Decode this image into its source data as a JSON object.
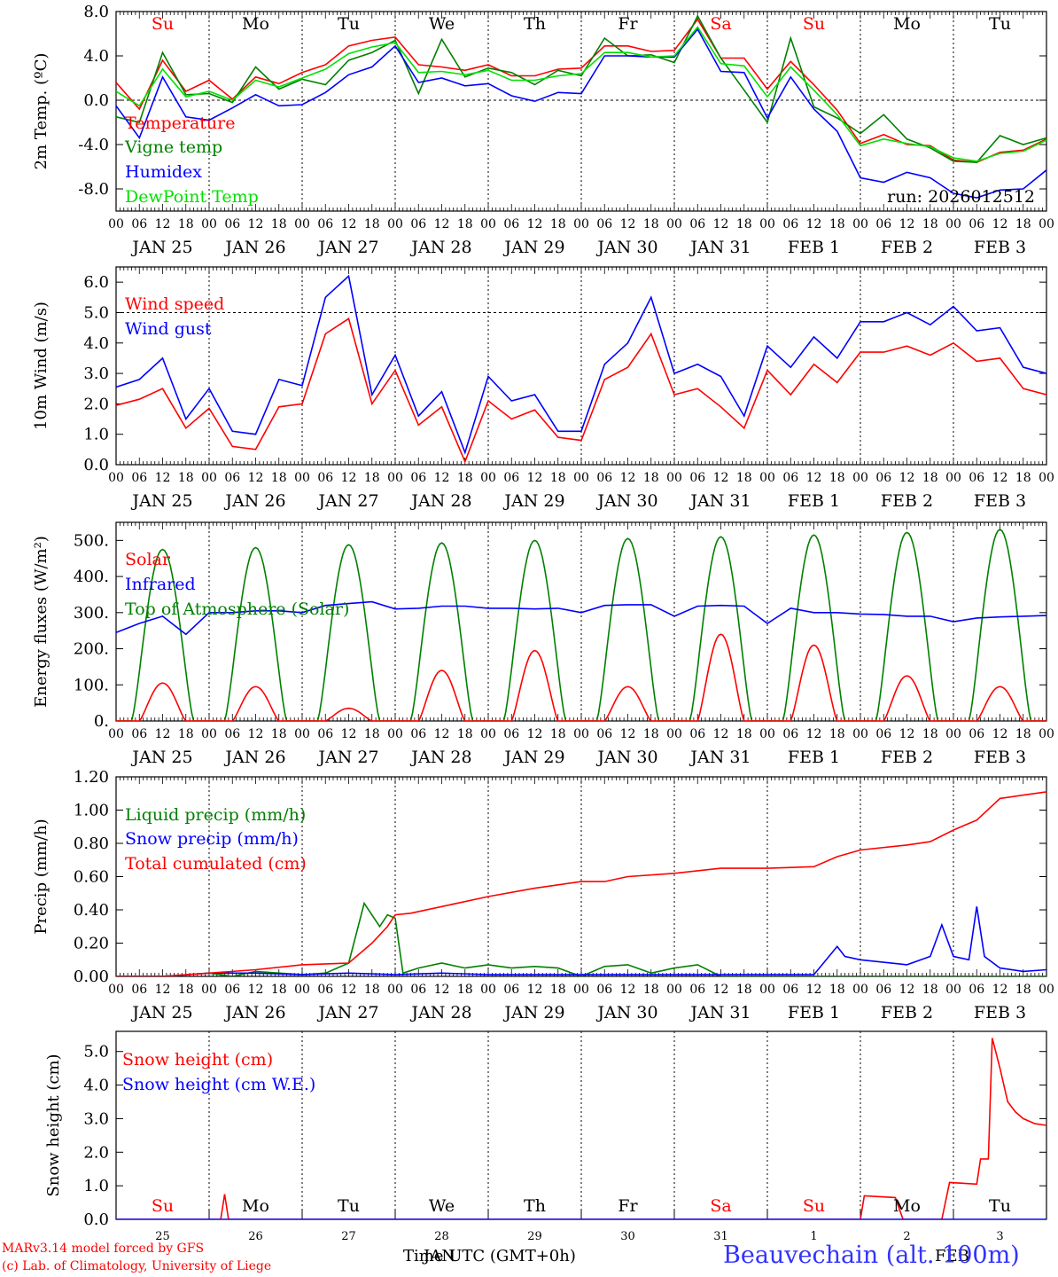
{
  "run_label": "run: 2026012512",
  "footer": {
    "model": "MARv3.14 model forced by GFS",
    "copyright": "(c) Lab. of Climatology, University of Liege",
    "time_axis": "Time UTC (GMT+0h)",
    "month_jan": "JAN",
    "month_feb": "FEB",
    "station": "Beauvechain (alt. 100m)"
  },
  "colors": {
    "red": "#ff0000",
    "green": "#008000",
    "blue": "#0000ff",
    "lime": "#00e000",
    "axis": "#000000"
  },
  "hour_ticks": [
    "00",
    "06",
    "12",
    "18"
  ],
  "date_labels": [
    "JAN 25",
    "JAN 26",
    "JAN 27",
    "JAN 28",
    "JAN 29",
    "JAN 30",
    "JAN 31",
    "FEB  1",
    "FEB  2",
    "FEB  3"
  ],
  "day_names": [
    "Su",
    "Mo",
    "Tu",
    "We",
    "Th",
    "Fr",
    "Sa",
    "Su",
    "Mo",
    "Tu"
  ],
  "day_numbers": [
    "25",
    "26",
    "27",
    "28",
    "29",
    "30",
    "31",
    "1",
    "2",
    "3"
  ],
  "chart_data": [
    {
      "type": "line",
      "id": "temp",
      "ylabel": "2m Temp. (ºC)",
      "ylim": [
        -10,
        8
      ],
      "yticks": [
        -8,
        -4,
        0,
        4,
        8
      ],
      "ytick_labels": [
        "-8.0",
        "-4.0",
        "0.0",
        "4.0",
        "8.0"
      ],
      "zero_line": 0,
      "x_hours": [
        0,
        6,
        12,
        18,
        24,
        30,
        36,
        42,
        48,
        54,
        60,
        66,
        72,
        78,
        84,
        90,
        96,
        102,
        108,
        114,
        120,
        126,
        132,
        138,
        144,
        150,
        156,
        162,
        168,
        174,
        180,
        186,
        192,
        198,
        204,
        210,
        216,
        222,
        228,
        234,
        240
      ],
      "series": [
        {
          "name": "Temperature",
          "color": "red",
          "values": [
            1.6,
            -0.8,
            3.6,
            0.8,
            1.8,
            0.1,
            2.1,
            1.5,
            2.5,
            3.2,
            4.9,
            5.4,
            5.7,
            3.2,
            3.0,
            2.7,
            3.2,
            2.2,
            2.2,
            2.8,
            2.9,
            4.9,
            4.9,
            4.4,
            4.5,
            7.3,
            3.8,
            3.8,
            1.0,
            3.5,
            1.4,
            -0.9,
            -3.9,
            -3.1,
            -4.0,
            -4.1,
            -5.4,
            -5.6,
            -4.7,
            -4.5,
            -3.5
          ]
        },
        {
          "name": "Vigne temp",
          "color": "green",
          "values": [
            -1.5,
            -2.0,
            4.3,
            0.5,
            0.6,
            -0.2,
            3.0,
            1.0,
            1.9,
            1.4,
            3.6,
            4.3,
            5.4,
            0.6,
            5.5,
            2.1,
            2.9,
            2.5,
            1.4,
            2.7,
            2.2,
            5.6,
            4.0,
            4.1,
            3.4,
            7.6,
            3.8,
            0.9,
            -2.0,
            5.6,
            -0.6,
            -1.6,
            -3.0,
            -1.3,
            -3.5,
            -4.3,
            -5.5,
            -5.6,
            -3.2,
            -4.0,
            -3.4
          ]
        },
        {
          "name": "Humidex",
          "color": "blue",
          "values": [
            -0.5,
            -3.4,
            2.1,
            -1.5,
            -1.8,
            -0.7,
            0.5,
            -0.5,
            -0.4,
            0.7,
            2.3,
            3.0,
            4.9,
            1.6,
            2.0,
            1.3,
            1.5,
            0.4,
            -0.1,
            0.7,
            0.6,
            4.0,
            4.0,
            3.9,
            3.9,
            6.4,
            2.6,
            2.5,
            -1.6,
            2.1,
            -0.8,
            -2.8,
            -7.0,
            -7.4,
            -6.5,
            -7.0,
            -8.4,
            -8.8,
            -8.1,
            -8.0,
            -6.3
          ]
        },
        {
          "name": "DewPoint Temp",
          "color": "lime",
          "values": [
            0.8,
            -0.5,
            2.8,
            0.3,
            0.8,
            0.0,
            1.8,
            1.2,
            2.0,
            2.8,
            4.2,
            4.8,
            5.2,
            2.5,
            2.6,
            2.3,
            2.7,
            1.8,
            1.8,
            2.2,
            2.4,
            4.3,
            4.3,
            3.9,
            4.0,
            6.6,
            3.3,
            3.1,
            0.3,
            3.0,
            0.9,
            -1.3,
            -4.1,
            -3.5,
            -3.9,
            -4.2,
            -5.2,
            -5.5,
            -4.8,
            -4.6,
            -3.6
          ]
        }
      ]
    },
    {
      "type": "line",
      "id": "wind",
      "ylabel": "10m Wind (m/s)",
      "ylim": [
        0,
        6.5
      ],
      "yticks": [
        0,
        1,
        2,
        3,
        4,
        5,
        6
      ],
      "ytick_labels": [
        "0.0",
        "1.0",
        "2.0",
        "3.0",
        "4.0",
        "5.0",
        "6.0"
      ],
      "ref_line": 5,
      "x_hours": [
        0,
        6,
        12,
        18,
        24,
        30,
        36,
        42,
        48,
        54,
        60,
        66,
        72,
        78,
        84,
        90,
        96,
        102,
        108,
        114,
        120,
        126,
        132,
        138,
        144,
        150,
        156,
        162,
        168,
        174,
        180,
        186,
        192,
        198,
        204,
        210,
        216,
        222,
        228,
        234,
        240
      ],
      "series": [
        {
          "name": "Wind speed",
          "color": "red",
          "values": [
            1.95,
            2.15,
            2.5,
            1.2,
            1.85,
            0.6,
            0.5,
            1.9,
            2.0,
            4.3,
            4.8,
            2.0,
            3.1,
            1.3,
            1.9,
            0.1,
            2.1,
            1.5,
            1.8,
            0.9,
            0.8,
            2.8,
            3.2,
            4.3,
            2.3,
            2.5,
            1.9,
            1.2,
            3.1,
            2.3,
            3.3,
            2.7,
            3.7,
            3.7,
            3.9,
            3.6,
            4.0,
            3.4,
            3.5,
            2.5,
            2.3
          ]
        },
        {
          "name": "Wind gust",
          "color": "blue",
          "values": [
            2.55,
            2.8,
            3.5,
            1.5,
            2.5,
            1.1,
            1.0,
            2.8,
            2.6,
            5.5,
            6.2,
            2.3,
            3.6,
            1.6,
            2.4,
            0.4,
            2.9,
            2.1,
            2.3,
            1.1,
            1.1,
            3.3,
            4.0,
            5.5,
            3.0,
            3.3,
            2.9,
            1.6,
            3.9,
            3.2,
            4.2,
            3.5,
            4.7,
            4.7,
            5.0,
            4.6,
            5.2,
            4.4,
            4.5,
            3.2,
            3.0
          ]
        }
      ]
    },
    {
      "type": "line",
      "id": "energy",
      "ylabel": "Energy fluxes (W/m²)",
      "ylim": [
        0,
        550
      ],
      "yticks": [
        0,
        100,
        200,
        300,
        400,
        500
      ],
      "ytick_labels": [
        "0.",
        "100.",
        "200.",
        "300.",
        "400.",
        "500."
      ],
      "solar_peaks": [
        105,
        95,
        35,
        140,
        195,
        95,
        240,
        210,
        125,
        95
      ],
      "toa_peaks": [
        475,
        480,
        488,
        493,
        500,
        505,
        510,
        515,
        522,
        530
      ],
      "series": [
        {
          "name": "Solar",
          "color": "red"
        },
        {
          "name": "Infrared",
          "color": "blue",
          "x_hours": [
            0,
            6,
            12,
            18,
            24,
            30,
            36,
            42,
            48,
            54,
            60,
            66,
            72,
            78,
            84,
            90,
            96,
            102,
            108,
            114,
            120,
            126,
            132,
            138,
            144,
            150,
            156,
            162,
            168,
            174,
            180,
            186,
            192,
            198,
            204,
            210,
            216,
            222,
            228,
            234,
            240
          ],
          "values": [
            245,
            270,
            290,
            240,
            300,
            300,
            305,
            305,
            300,
            320,
            325,
            330,
            310,
            312,
            318,
            318,
            312,
            312,
            310,
            312,
            300,
            320,
            322,
            322,
            290,
            318,
            320,
            318,
            270,
            312,
            300,
            300,
            296,
            295,
            290,
            290,
            275,
            285,
            288,
            290,
            292
          ]
        },
        {
          "name": "Top of Atmosphere (Solar)",
          "color": "green"
        }
      ]
    },
    {
      "type": "line",
      "id": "precip",
      "ylabel": "Precip (mm/h)",
      "ylim": [
        0,
        1.2
      ],
      "yticks": [
        0,
        0.2,
        0.4,
        0.6,
        0.8,
        1.0,
        1.2
      ],
      "ytick_labels": [
        "0.00",
        "0.20",
        "0.40",
        "0.60",
        "0.80",
        "1.00",
        "1.20"
      ],
      "series": [
        {
          "name": "Liquid precip (mm/h)",
          "color": "green",
          "x_hours": [
            0,
            12,
            24,
            30,
            36,
            48,
            54,
            60,
            64,
            68,
            70,
            72,
            74,
            78,
            84,
            90,
            96,
            102,
            108,
            114,
            120,
            126,
            132,
            138,
            144,
            150,
            156,
            162,
            168,
            174,
            180,
            186,
            192,
            198,
            204,
            210,
            216,
            222,
            228,
            234,
            240
          ],
          "values": [
            0,
            0,
            0.02,
            0,
            0.03,
            0.01,
            0.02,
            0.08,
            0.44,
            0.3,
            0.37,
            0.35,
            0.02,
            0.05,
            0.08,
            0.05,
            0.07,
            0.05,
            0.06,
            0.05,
            0.0,
            0.06,
            0.07,
            0.02,
            0.05,
            0.07,
            0,
            0,
            0,
            0,
            0,
            0,
            0,
            0,
            0,
            0,
            0,
            0,
            0,
            0,
            0
          ]
        },
        {
          "name": "Snow precip (mm/h)",
          "color": "blue",
          "x_hours": [
            0,
            12,
            24,
            36,
            48,
            60,
            72,
            84,
            96,
            108,
            120,
            132,
            144,
            156,
            168,
            180,
            186,
            188,
            192,
            204,
            210,
            213,
            216,
            220,
            222,
            224,
            228,
            234,
            240
          ],
          "values": [
            0,
            0,
            0.02,
            0.02,
            0.01,
            0.02,
            0.01,
            0.02,
            0.01,
            0.01,
            0.01,
            0.01,
            0.01,
            0.01,
            0.01,
            0.01,
            0.18,
            0.12,
            0.1,
            0.07,
            0.12,
            0.31,
            0.12,
            0.1,
            0.42,
            0.12,
            0.05,
            0.03,
            0.04
          ]
        },
        {
          "name": "Total cumulated (cm)",
          "color": "red",
          "x_hours": [
            0,
            12,
            24,
            36,
            48,
            60,
            66,
            70,
            72,
            76,
            84,
            96,
            108,
            120,
            126,
            132,
            144,
            156,
            168,
            180,
            186,
            192,
            204,
            210,
            216,
            219,
            222,
            228,
            234,
            240
          ],
          "values": [
            0,
            0,
            0.02,
            0.04,
            0.07,
            0.08,
            0.2,
            0.3,
            0.37,
            0.38,
            0.42,
            0.48,
            0.53,
            0.57,
            0.57,
            0.6,
            0.62,
            0.65,
            0.65,
            0.66,
            0.72,
            0.76,
            0.79,
            0.81,
            0.88,
            0.91,
            0.94,
            1.07,
            1.09,
            1.11
          ]
        }
      ]
    },
    {
      "type": "line",
      "id": "snow",
      "ylabel": "Snow height (cm)",
      "ylim": [
        0,
        5.6
      ],
      "yticks": [
        0,
        1,
        2,
        3,
        4,
        5
      ],
      "ytick_labels": [
        "0.0",
        "1.0",
        "2.0",
        "3.0",
        "4.0",
        "5.0"
      ],
      "series": [
        {
          "name": "Snow height (cm)",
          "color": "red",
          "x_hours": [
            0,
            27,
            28,
            29,
            30,
            120,
            192,
            193,
            201,
            203,
            213,
            215,
            222,
            223,
            225,
            226,
            228,
            230,
            232,
            234,
            237,
            240
          ],
          "values": [
            0,
            0,
            0.75,
            0,
            0,
            0,
            0,
            0.7,
            0.65,
            0,
            0,
            1.1,
            1.05,
            1.8,
            1.8,
            5.4,
            4.5,
            3.5,
            3.2,
            3.0,
            2.85,
            2.8
          ]
        },
        {
          "name": "Snow height (cm W.E.)",
          "color": "blue",
          "x_hours": [
            0,
            240
          ],
          "values": [
            0,
            0
          ]
        }
      ]
    }
  ]
}
